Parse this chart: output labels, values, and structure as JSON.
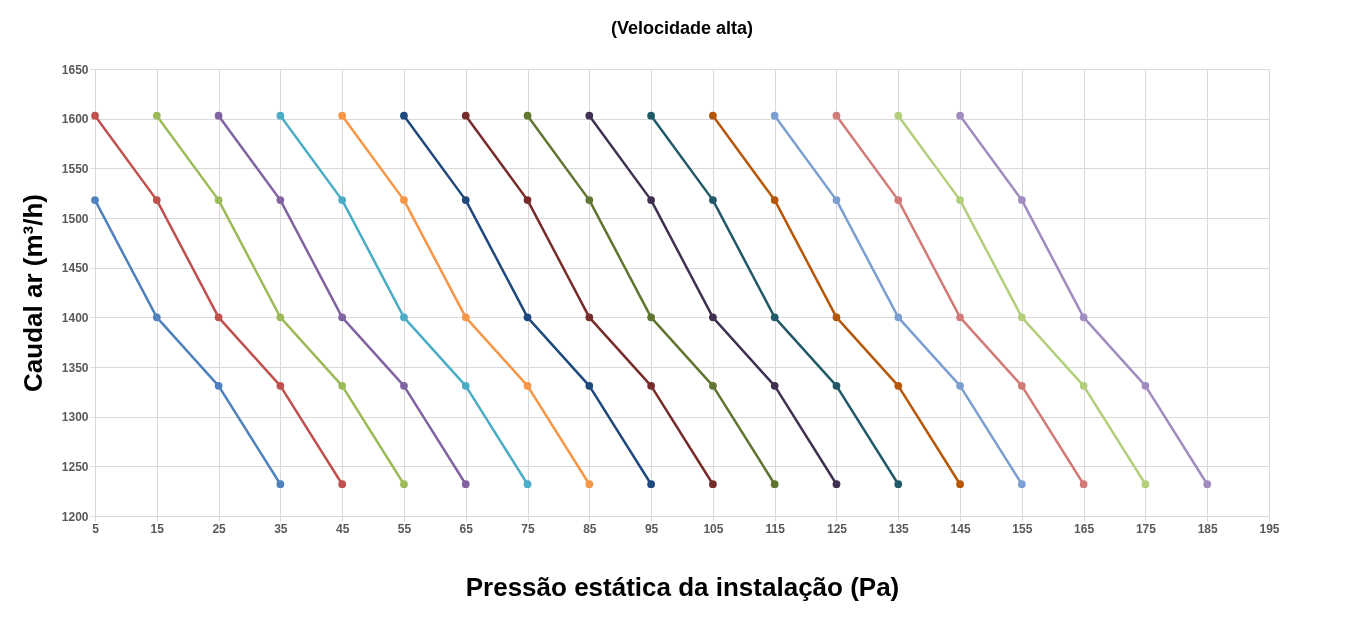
{
  "chart_data": {
    "type": "line",
    "title": "(Velocidade alta)",
    "xlabel": "Pressão estática da instalação (Pa)",
    "ylabel": "Caudal ar (m³/h)",
    "xlim": [
      5,
      195
    ],
    "xticks": [
      5,
      15,
      25,
      35,
      45,
      55,
      65,
      75,
      85,
      95,
      105,
      115,
      125,
      135,
      145,
      155,
      165,
      175,
      185,
      195
    ],
    "ylim": [
      1200,
      1650
    ],
    "yticks": [
      1200,
      1250,
      1300,
      1350,
      1400,
      1450,
      1500,
      1550,
      1600,
      1650
    ],
    "grid": true,
    "legend": false,
    "marker": "circle",
    "line_style": "solid",
    "series": [
      {
        "color": "#4f81bd",
        "x": [
          5,
          15,
          25,
          35
        ],
        "values": [
          1518,
          1400,
          1331,
          1232
        ]
      },
      {
        "color": "#c0504d",
        "x": [
          5,
          15,
          25,
          35,
          45
        ],
        "values": [
          1603,
          1518,
          1400,
          1331,
          1232
        ]
      },
      {
        "color": "#9bbb59",
        "x": [
          15,
          25,
          35,
          45,
          55
        ],
        "values": [
          1603,
          1518,
          1400,
          1331,
          1232
        ]
      },
      {
        "color": "#8064a2",
        "x": [
          25,
          35,
          45,
          55,
          65
        ],
        "values": [
          1603,
          1518,
          1400,
          1331,
          1232
        ]
      },
      {
        "color": "#4bacc6",
        "x": [
          35,
          45,
          55,
          65,
          75
        ],
        "values": [
          1603,
          1518,
          1400,
          1331,
          1232
        ]
      },
      {
        "color": "#f79646",
        "x": [
          45,
          55,
          65,
          75,
          85
        ],
        "values": [
          1603,
          1518,
          1400,
          1331,
          1232
        ]
      },
      {
        "color": "#1f497d",
        "x": [
          55,
          65,
          75,
          85,
          95
        ],
        "values": [
          1603,
          1518,
          1400,
          1331,
          1232
        ]
      },
      {
        "color": "#772c2a",
        "x": [
          65,
          75,
          85,
          95,
          105
        ],
        "values": [
          1603,
          1518,
          1400,
          1331,
          1232
        ]
      },
      {
        "color": "#5f7530",
        "x": [
          75,
          85,
          95,
          105,
          115
        ],
        "values": [
          1603,
          1518,
          1400,
          1331,
          1232
        ]
      },
      {
        "color": "#403152",
        "x": [
          85,
          95,
          105,
          115,
          125
        ],
        "values": [
          1603,
          1518,
          1400,
          1331,
          1232
        ]
      },
      {
        "color": "#215968",
        "x": [
          95,
          105,
          115,
          125,
          135
        ],
        "values": [
          1603,
          1518,
          1400,
          1331,
          1232
        ]
      },
      {
        "color": "#b65708",
        "x": [
          105,
          115,
          125,
          135,
          145
        ],
        "values": [
          1603,
          1518,
          1400,
          1331,
          1232
        ]
      },
      {
        "color": "#7c9fd1",
        "x": [
          115,
          125,
          135,
          145,
          155
        ],
        "values": [
          1603,
          1518,
          1400,
          1331,
          1232
        ]
      },
      {
        "color": "#d17b78",
        "x": [
          125,
          135,
          145,
          155,
          165
        ],
        "values": [
          1603,
          1518,
          1400,
          1331,
          1232
        ]
      },
      {
        "color": "#b3cf7c",
        "x": [
          135,
          145,
          155,
          165,
          175
        ],
        "values": [
          1603,
          1518,
          1400,
          1331,
          1232
        ]
      },
      {
        "color": "#a18cc0",
        "x": [
          145,
          155,
          165,
          175,
          185
        ],
        "values": [
          1603,
          1518,
          1400,
          1331,
          1232
        ]
      }
    ]
  }
}
